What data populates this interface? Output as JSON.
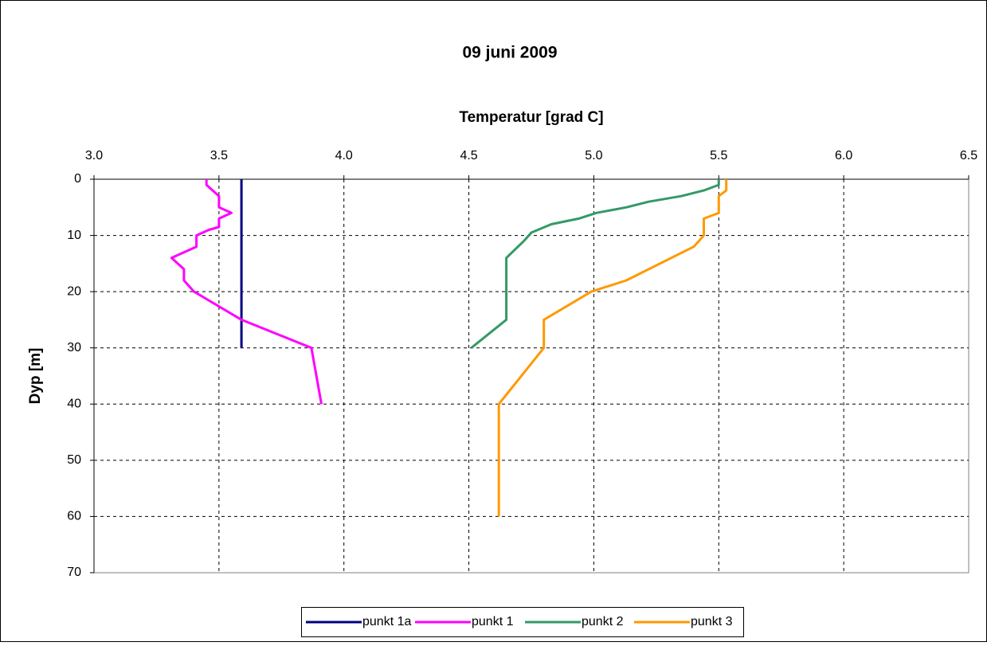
{
  "chart_data": {
    "type": "line",
    "title": "09 juni 2009",
    "x_label": "Temperatur [grad C]",
    "y_label": "Dyp [m]",
    "xaxis_position": "top",
    "grid": true,
    "legend_position": "bottom",
    "xlim": [
      3,
      6.5
    ],
    "xticks": [
      {
        "value": 3,
        "label": "3.0"
      },
      3.5,
      {
        "value": 4,
        "label": "4.0"
      },
      4.5,
      {
        "value": 5,
        "label": "5.0"
      },
      5.5,
      {
        "value": 6,
        "label": "6.0"
      },
      6.5
    ],
    "ylim": [
      70,
      0
    ],
    "yticks": [
      0,
      10,
      20,
      30,
      40,
      50,
      60,
      70
    ],
    "series": [
      {
        "name": "punkt 1a",
        "color": "#000080",
        "x": [
          3.59,
          3.59,
          3.59,
          3.59
        ],
        "values": [
          0,
          10,
          20,
          30
        ]
      },
      {
        "name": "punkt 1",
        "color": "#ff00ff",
        "x": [
          3.45,
          3.45,
          3.5,
          3.5,
          3.55,
          3.5,
          3.5,
          3.46,
          3.41,
          3.41,
          3.31,
          3.36,
          3.36,
          3.4,
          3.59,
          3.87,
          3.91
        ],
        "values": [
          0,
          1,
          3,
          5,
          6,
          7,
          8.5,
          9,
          10,
          12,
          14,
          16,
          18,
          20,
          25,
          30,
          40
        ]
      },
      {
        "name": "punkt 2",
        "color": "#339966",
        "x": [
          5.5,
          5.5,
          5.44,
          5.35,
          5.22,
          5.13,
          5.01,
          4.94,
          4.83,
          4.75,
          4.72,
          4.65,
          4.65,
          4.51
        ],
        "values": [
          0,
          1,
          2,
          3,
          4,
          5,
          6,
          7,
          8,
          9.5,
          11,
          14,
          25,
          30
        ]
      },
      {
        "name": "punkt 3",
        "color": "#ff9900",
        "x": [
          5.53,
          5.53,
          5.5,
          5.5,
          5.44,
          5.44,
          5.4,
          5.13,
          4.99,
          4.8,
          4.8,
          4.62,
          4.62
        ],
        "values": [
          0,
          2,
          3,
          6,
          7,
          10,
          12,
          18,
          20,
          25,
          30,
          40,
          60
        ]
      }
    ]
  }
}
